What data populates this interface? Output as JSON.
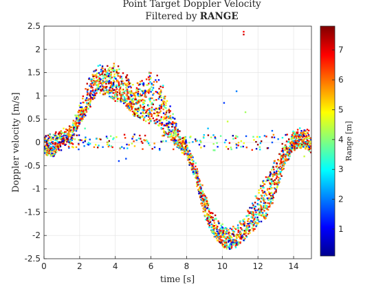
{
  "chart_data": {
    "type": "scatter",
    "title_line1": "Point Target Doppler Velocity",
    "title_line2_prefix": "Filtered by ",
    "title_line2_bold": "RANGE",
    "xlabel": "time [s]",
    "ylabel": "Doppler velocity  [m/s]",
    "xlim": [
      0,
      15
    ],
    "ylim": [
      -2.5,
      2.5
    ],
    "xticks": [
      0,
      2,
      4,
      6,
      8,
      10,
      12,
      14
    ],
    "yticks": [
      -2.5,
      -2,
      -1.5,
      -1,
      -0.5,
      0,
      0.5,
      1,
      1.5,
      2,
      2.5
    ],
    "xtick_labels": [
      "0",
      "2",
      "4",
      "6",
      "8",
      "10",
      "12",
      "14"
    ],
    "ytick_labels": [
      "-2.5",
      "-2",
      "-1.5",
      "-1",
      "-0.5",
      "0",
      "0.5",
      "1",
      "1.5",
      "2",
      "2.5"
    ],
    "grid": true,
    "colormap": "jet",
    "colorbar": {
      "label": "Range [m]",
      "lim": [
        0.1,
        7.8
      ],
      "ticks": [
        1,
        2,
        3,
        4,
        5,
        6,
        7
      ],
      "tick_labels": [
        "1",
        "2",
        "3",
        "4",
        "5",
        "6",
        "7"
      ]
    },
    "point_size": 2,
    "envelope": {
      "t": [
        0,
        0.5,
        1.0,
        1.5,
        2.0,
        2.5,
        3.0,
        3.5,
        4.0,
        4.5,
        5.0,
        5.5,
        6.0,
        6.5,
        7.0,
        7.5,
        8.0,
        8.5,
        9.0,
        9.5,
        10.0,
        10.5,
        11.0,
        11.5,
        12.0,
        12.5,
        13.0,
        13.5,
        14.0,
        14.5,
        15.0
      ],
      "upper": [
        0.15,
        0.2,
        0.25,
        0.35,
        0.8,
        1.35,
        1.7,
        1.65,
        1.7,
        1.55,
        1.25,
        1.35,
        1.55,
        1.5,
        0.9,
        0.35,
        0.05,
        -0.4,
        -1.1,
        -1.55,
        -1.75,
        -1.85,
        -1.7,
        -1.4,
        -1.0,
        -0.65,
        -0.3,
        -0.05,
        0.25,
        0.3,
        0.25
      ],
      "lower": [
        -0.25,
        -0.3,
        -0.05,
        0.0,
        0.4,
        0.7,
        1.1,
        1.0,
        0.9,
        0.8,
        0.6,
        0.5,
        0.4,
        0.3,
        0.1,
        -0.1,
        -0.3,
        -0.8,
        -1.6,
        -2.0,
        -2.25,
        -2.3,
        -2.2,
        -2.0,
        -1.75,
        -1.6,
        -1.1,
        -0.5,
        -0.15,
        -0.1,
        -0.2
      ]
    },
    "points": [
      {
        "x": 11.2,
        "y": 2.38,
        "r": 6.8
      },
      {
        "x": 11.2,
        "y": 2.32,
        "r": 7.2
      },
      {
        "x": 10.3,
        "y": 0.45,
        "r": 4.5
      },
      {
        "x": 10.8,
        "y": 1.1,
        "r": 2.0
      },
      {
        "x": 10.1,
        "y": 0.85,
        "r": 1.5
      },
      {
        "x": 11.3,
        "y": 0.65,
        "r": 4.2
      },
      {
        "x": 1.1,
        "y": 0.3,
        "r": 4.8
      },
      {
        "x": 2.3,
        "y": 0.3,
        "r": 3.6
      },
      {
        "x": 9.2,
        "y": 0.3,
        "r": 2.5
      },
      {
        "x": 12.8,
        "y": 0.25,
        "r": 1.8
      },
      {
        "x": 14.6,
        "y": -0.3,
        "r": 4.5
      }
    ],
    "zero_band": [
      {
        "x": 2.2,
        "y": 0.0,
        "r": 1.2
      },
      {
        "x": 2.5,
        "y": -0.05,
        "r": 1.4
      },
      {
        "x": 2.9,
        "y": -0.05,
        "r": 4.8
      },
      {
        "x": 3.3,
        "y": -0.1,
        "r": 1.8
      },
      {
        "x": 3.6,
        "y": 0.0,
        "r": 4.2
      },
      {
        "x": 4.2,
        "y": -0.4,
        "r": 1.5
      },
      {
        "x": 4.6,
        "y": -0.35,
        "r": 1.6
      },
      {
        "x": 5.2,
        "y": 0.05,
        "r": 2.3
      },
      {
        "x": 7.5,
        "y": 0.0,
        "r": 4.4
      },
      {
        "x": 8.8,
        "y": 0.0,
        "r": 4.0
      },
      {
        "x": 9.6,
        "y": 0.1,
        "r": 1.4
      },
      {
        "x": 10.2,
        "y": 0.05,
        "r": 1.3
      },
      {
        "x": 10.8,
        "y": -0.05,
        "r": 1.6
      },
      {
        "x": 12.1,
        "y": -0.1,
        "r": 4.1
      },
      {
        "x": 12.8,
        "y": 0.0,
        "r": 1.7
      }
    ]
  }
}
